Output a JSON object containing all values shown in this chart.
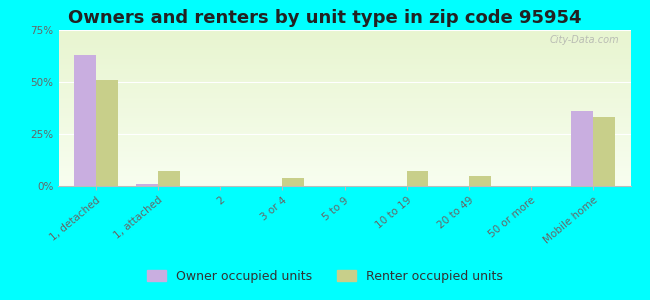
{
  "title": "Owners and renters by unit type in zip code 95954",
  "categories": [
    "1, detached",
    "1, attached",
    "2",
    "3 or 4",
    "5 to 9",
    "10 to 19",
    "20 to 49",
    "50 or more",
    "Mobile home"
  ],
  "owner_values": [
    63,
    1,
    0,
    0,
    0,
    0,
    0,
    0,
    36
  ],
  "renter_values": [
    51,
    7,
    0,
    4,
    0,
    7,
    5,
    0,
    33
  ],
  "owner_color": "#c9aee0",
  "renter_color": "#c8cf8a",
  "background_color": "#00ffff",
  "plot_bg_top": "#e8f5d0",
  "plot_bg_bottom": "#f8fef0",
  "ylim": [
    0,
    75
  ],
  "yticks": [
    0,
    25,
    50,
    75
  ],
  "ytick_labels": [
    "0%",
    "25%",
    "50%",
    "75%"
  ],
  "bar_width": 0.35,
  "legend_owner": "Owner occupied units",
  "legend_renter": "Renter occupied units",
  "title_fontsize": 13,
  "tick_fontsize": 7.5,
  "legend_fontsize": 9,
  "watermark": "City-Data.com"
}
